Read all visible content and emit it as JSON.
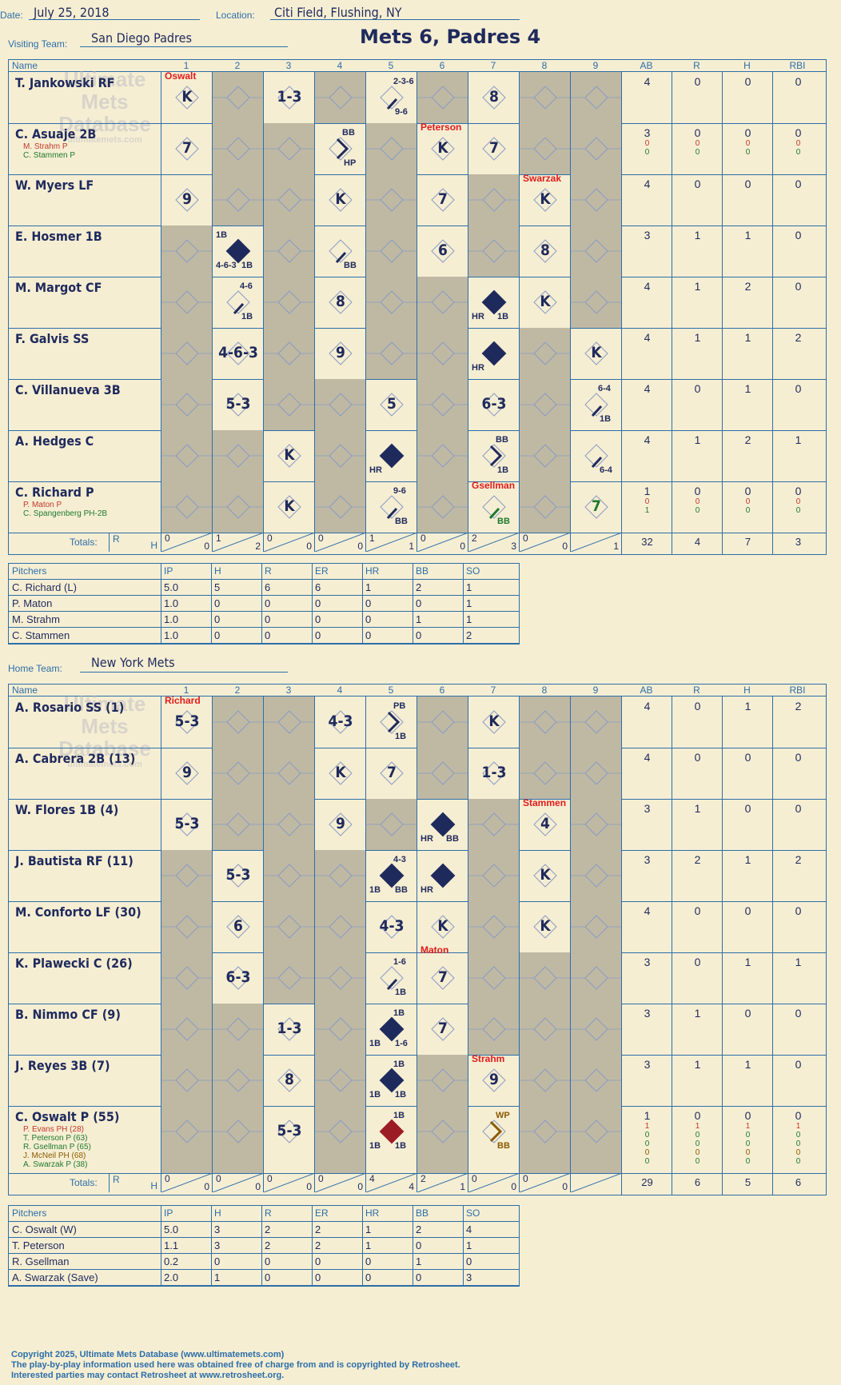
{
  "header": {
    "date_label": "Date:",
    "date": "July 25, 2018",
    "location_label": "Location:",
    "location": "Citi Field, Flushing, NY",
    "visiting_label": "Visiting Team:",
    "visiting": "San Diego Padres",
    "home_label": "Home Team:",
    "home": "New York Mets",
    "title": "Mets 6, Padres 4"
  },
  "watermark": {
    "l1": "Ultimate",
    "l2": "Mets",
    "l3": "Database",
    "l4": "ultimatemets.com"
  },
  "columns": {
    "name": "Name",
    "innings": [
      "1",
      "2",
      "3",
      "4",
      "5",
      "6",
      "7",
      "8",
      "9"
    ],
    "ab": "AB",
    "r": "R",
    "h": "H",
    "rbi": "RBI",
    "totals": "Totals:",
    "tr": "R",
    "th": "H"
  },
  "visitors": {
    "batters": [
      {
        "name": "T. Jankowski RF",
        "ab": "4",
        "r": "0",
        "h": "0",
        "rbi": "0",
        "subs": []
      },
      {
        "name": "C. Asuaje 2B",
        "ab": "3",
        "r": "0",
        "h": "0",
        "rbi": "0",
        "subs": [
          {
            "name": "M. Strahm P",
            "c": "#c0392b",
            "ab": "0",
            "r": "0",
            "h": "0",
            "rbi": "0"
          },
          {
            "name": "C. Stammen P",
            "c": "#1e7a2e",
            "ab": "0",
            "r": "0",
            "h": "0",
            "rbi": "0"
          }
        ]
      },
      {
        "name": "W. Myers LF",
        "ab": "4",
        "r": "0",
        "h": "0",
        "rbi": "0",
        "subs": []
      },
      {
        "name": "E. Hosmer 1B",
        "ab": "3",
        "r": "1",
        "h": "1",
        "rbi": "0",
        "subs": []
      },
      {
        "name": "M. Margot CF",
        "ab": "4",
        "r": "1",
        "h": "2",
        "rbi": "0",
        "subs": []
      },
      {
        "name": "F. Galvis SS",
        "ab": "4",
        "r": "1",
        "h": "1",
        "rbi": "2",
        "subs": []
      },
      {
        "name": "C. Villanueva 3B",
        "ab": "4",
        "r": "0",
        "h": "1",
        "rbi": "0",
        "subs": []
      },
      {
        "name": "A. Hedges C",
        "ab": "4",
        "r": "1",
        "h": "2",
        "rbi": "1",
        "subs": []
      },
      {
        "name": "C. Richard P",
        "ab": "1",
        "r": "0",
        "h": "0",
        "rbi": "0",
        "subs": [
          {
            "name": "P. Maton P",
            "c": "#c0392b",
            "ab": "0",
            "r": "0",
            "h": "0",
            "rbi": "0"
          },
          {
            "name": "C. Spangenberg PH-2B",
            "c": "#1e7a2e",
            "ab": "1",
            "r": "0",
            "h": "0",
            "rbi": "0"
          }
        ]
      }
    ],
    "totals": {
      "innings": [
        [
          "0",
          "0"
        ],
        [
          "1",
          "2"
        ],
        [
          "0",
          "0"
        ],
        [
          "0",
          "0"
        ],
        [
          "1",
          "1"
        ],
        [
          "0",
          "0"
        ],
        [
          "2",
          "3"
        ],
        [
          "0",
          "0"
        ],
        [
          "",
          "1"
        ]
      ],
      "ab": "32",
      "r": "4",
      "h": "7",
      "rbi": "3"
    },
    "plays": [
      [
        {
          "i": 0,
          "t": "K",
          "pm": "Oswalt"
        },
        {
          "i": 2,
          "t": "1-3"
        },
        {
          "i": 4,
          "t": "",
          "tr": "2-3-6",
          "br": "9-6",
          "sl": 1
        },
        {
          "i": 6,
          "t": "8"
        }
      ],
      [
        {
          "i": 0,
          "t": "7"
        },
        {
          "i": 3,
          "t": "",
          "tr": "BB",
          "br": "HP",
          "arrow": 1
        },
        {
          "i": 5,
          "t": "K",
          "pm": "Peterson"
        },
        {
          "i": 6,
          "t": "7"
        }
      ],
      [
        {
          "i": 0,
          "t": "9"
        },
        {
          "i": 3,
          "t": "K"
        },
        {
          "i": 5,
          "t": "7"
        },
        {
          "i": 7,
          "t": "K",
          "pm": "Swarzak"
        }
      ],
      [
        {
          "i": 1,
          "t": "",
          "tl": "1B",
          "bl": "4-6-3",
          "br": "1B",
          "fill": "#1f2a5c"
        },
        {
          "i": 3,
          "t": "",
          "br": "BB",
          "sl": 1
        },
        {
          "i": 5,
          "t": "6"
        },
        {
          "i": 7,
          "t": "8"
        }
      ],
      [
        {
          "i": 1,
          "t": "",
          "tr": "4-6",
          "br": "1B",
          "sl": 1
        },
        {
          "i": 3,
          "t": "8"
        },
        {
          "i": 6,
          "t": "",
          "bl": "HR",
          "br": "1B",
          "fill": "#1f2a5c"
        },
        {
          "i": 7,
          "t": "K"
        }
      ],
      [
        {
          "i": 1,
          "t": "4-6-3"
        },
        {
          "i": 3,
          "t": "9"
        },
        {
          "i": 6,
          "t": "",
          "bl": "HR",
          "fill": "#1f2a5c"
        },
        {
          "i": 8,
          "t": "K"
        }
      ],
      [
        {
          "i": 1,
          "t": "5-3"
        },
        {
          "i": 4,
          "t": "5"
        },
        {
          "i": 6,
          "t": "6-3"
        },
        {
          "i": 8,
          "t": "",
          "tr": "6-4",
          "br": "1B",
          "sl": 1
        }
      ],
      [
        {
          "i": 2,
          "t": "K"
        },
        {
          "i": 4,
          "t": "",
          "bl": "HR",
          "fill": "#1f2a5c"
        },
        {
          "i": 6,
          "t": "",
          "tr": "BB",
          "br": "1B",
          "arrow": 1
        },
        {
          "i": 8,
          "t": "",
          "br": "6-4",
          "sl": 1
        }
      ],
      [
        {
          "i": 2,
          "t": "K"
        },
        {
          "i": 4,
          "t": "",
          "tr": "9-6",
          "br": "BB",
          "sl": 1
        },
        {
          "i": 6,
          "t": "",
          "br": "BB",
          "sl": 1,
          "pm": "Gsellman",
          "green": 1
        },
        {
          "i": 8,
          "t": "7",
          "green": 1
        }
      ]
    ],
    "pitchers_header": [
      "Pitchers",
      "IP",
      "H",
      "R",
      "ER",
      "HR",
      "BB",
      "SO"
    ],
    "pitchers": [
      [
        "C. Richard (L)",
        "5.0",
        "5",
        "6",
        "6",
        "1",
        "2",
        "1"
      ],
      [
        "P. Maton",
        "1.0",
        "0",
        "0",
        "0",
        "0",
        "0",
        "1"
      ],
      [
        "M. Strahm",
        "1.0",
        "0",
        "0",
        "0",
        "0",
        "1",
        "1"
      ],
      [
        "C. Stammen",
        "1.0",
        "0",
        "0",
        "0",
        "0",
        "0",
        "2"
      ]
    ]
  },
  "home": {
    "batters": [
      {
        "name": "A. Rosario SS (1)",
        "ab": "4",
        "r": "0",
        "h": "1",
        "rbi": "2",
        "subs": []
      },
      {
        "name": "A. Cabrera 2B (13)",
        "ab": "4",
        "r": "0",
        "h": "0",
        "rbi": "0",
        "subs": []
      },
      {
        "name": "W. Flores 1B (4)",
        "ab": "3",
        "r": "1",
        "h": "0",
        "rbi": "0",
        "subs": []
      },
      {
        "name": "J. Bautista RF (11)",
        "ab": "3",
        "r": "2",
        "h": "1",
        "rbi": "2",
        "subs": []
      },
      {
        "name": "M. Conforto LF (30)",
        "ab": "4",
        "r": "0",
        "h": "0",
        "rbi": "0",
        "subs": []
      },
      {
        "name": "K. Plawecki C (26)",
        "ab": "3",
        "r": "0",
        "h": "1",
        "rbi": "1",
        "subs": []
      },
      {
        "name": "B. Nimmo CF (9)",
        "ab": "3",
        "r": "1",
        "h": "0",
        "rbi": "0",
        "subs": []
      },
      {
        "name": "J. Reyes 3B (7)",
        "ab": "3",
        "r": "1",
        "h": "1",
        "rbi": "0",
        "subs": []
      },
      {
        "name": "C. Oswalt P (55)",
        "ab": "1",
        "r": "0",
        "h": "0",
        "rbi": "0",
        "subs": [
          {
            "name": "P. Evans PH (28)",
            "c": "#c0392b",
            "ab": "1",
            "r": "1",
            "h": "1",
            "rbi": "1"
          },
          {
            "name": "T. Peterson P (63)",
            "c": "#1e7a2e",
            "ab": "0",
            "r": "0",
            "h": "0",
            "rbi": "0"
          },
          {
            "name": "R. Gsellman P (65)",
            "c": "#1e7a2e",
            "ab": "0",
            "r": "0",
            "h": "0",
            "rbi": "0"
          },
          {
            "name": "J. McNeil PH (68)",
            "c": "#8a5a00",
            "ab": "0",
            "r": "0",
            "h": "0",
            "rbi": "0"
          },
          {
            "name": "A. Swarzak P (38)",
            "c": "#1e7a2e",
            "ab": "0",
            "r": "0",
            "h": "0",
            "rbi": "0"
          }
        ]
      }
    ],
    "totals": {
      "innings": [
        [
          "0",
          "0"
        ],
        [
          "0",
          "0"
        ],
        [
          "0",
          "0"
        ],
        [
          "0",
          "0"
        ],
        [
          "4",
          "4"
        ],
        [
          "2",
          "1"
        ],
        [
          "0",
          "0"
        ],
        [
          "0",
          "0"
        ],
        [
          "",
          ""
        ]
      ],
      "ab": "29",
      "r": "6",
      "h": "5",
      "rbi": "6"
    },
    "plays": [
      [
        {
          "i": 0,
          "t": "5-3",
          "pm": "Richard"
        },
        {
          "i": 3,
          "t": "4-3"
        },
        {
          "i": 4,
          "t": "",
          "tr": "PB",
          "br": "1B",
          "arrow": 1
        },
        {
          "i": 6,
          "t": "K"
        }
      ],
      [
        {
          "i": 0,
          "t": "9"
        },
        {
          "i": 3,
          "t": "K"
        },
        {
          "i": 4,
          "t": "7"
        },
        {
          "i": 6,
          "t": "1-3"
        }
      ],
      [
        {
          "i": 0,
          "t": "5-3"
        },
        {
          "i": 3,
          "t": "9"
        },
        {
          "i": 5,
          "t": "",
          "bl": "HR",
          "br": "BB",
          "fill": "#1f2a5c"
        },
        {
          "i": 7,
          "t": "4",
          "pm": "Stammen"
        }
      ],
      [
        {
          "i": 1,
          "t": "5-3"
        },
        {
          "i": 4,
          "t": "",
          "tr": "4-3",
          "bl": "1B",
          "br": "BB",
          "fill": "#1f2a5c"
        },
        {
          "i": 5,
          "t": "",
          "bl": "HR",
          "fill": "#1f2a5c"
        },
        {
          "i": 7,
          "t": "K"
        }
      ],
      [
        {
          "i": 1,
          "t": "6"
        },
        {
          "i": 4,
          "t": "4-3"
        },
        {
          "i": 5,
          "t": "K",
          "pmt": "Maton"
        },
        {
          "i": 7,
          "t": "K"
        }
      ],
      [
        {
          "i": 1,
          "t": "6-3"
        },
        {
          "i": 4,
          "t": "",
          "tr": "1-6",
          "br": "1B",
          "sl": 1
        },
        {
          "i": 5,
          "t": "7"
        }
      ],
      [
        {
          "i": 2,
          "t": "1-3"
        },
        {
          "i": 4,
          "t": "",
          "tr": "1B",
          "bl": "1B",
          "br": "1-6",
          "fill": "#1f2a5c"
        },
        {
          "i": 5,
          "t": "7"
        }
      ],
      [
        {
          "i": 2,
          "t": "8"
        },
        {
          "i": 4,
          "t": "",
          "tr": "1B",
          "bl": "1B",
          "br": "1B",
          "fill": "#1f2a5c"
        },
        {
          "i": 6,
          "t": "9",
          "pm": "Strahm"
        }
      ],
      [
        {
          "i": 2,
          "t": "5-3"
        },
        {
          "i": 4,
          "t": "",
          "tr": "1B",
          "bl": "1B",
          "br": "1B",
          "fill": "#9c1c26",
          "red": 1
        },
        {
          "i": 6,
          "t": "",
          "tr": "WP",
          "br": "BB",
          "arrow": 1,
          "brown": 1
        }
      ]
    ],
    "pitchers_header": [
      "Pitchers",
      "IP",
      "H",
      "R",
      "ER",
      "HR",
      "BB",
      "SO"
    ],
    "pitchers": [
      [
        "C. Oswalt (W)",
        "5.0",
        "3",
        "2",
        "2",
        "1",
        "2",
        "4"
      ],
      [
        "T. Peterson",
        "1.1",
        "3",
        "2",
        "2",
        "1",
        "0",
        "1"
      ],
      [
        "R. Gsellman",
        "0.2",
        "0",
        "0",
        "0",
        "0",
        "1",
        "0"
      ],
      [
        "A. Swarzak (Save)",
        "2.0",
        "1",
        "0",
        "0",
        "0",
        "0",
        "3"
      ]
    ]
  },
  "footer": {
    "l1": "Copyright 2025, Ultimate Mets Database (www.ultimatemets.com)",
    "l2": "The play-by-play information used here was obtained free of charge from and is copyrighted by Retrosheet.",
    "l3": "Interested parties may contact Retrosheet at www.retrosheet.org."
  }
}
